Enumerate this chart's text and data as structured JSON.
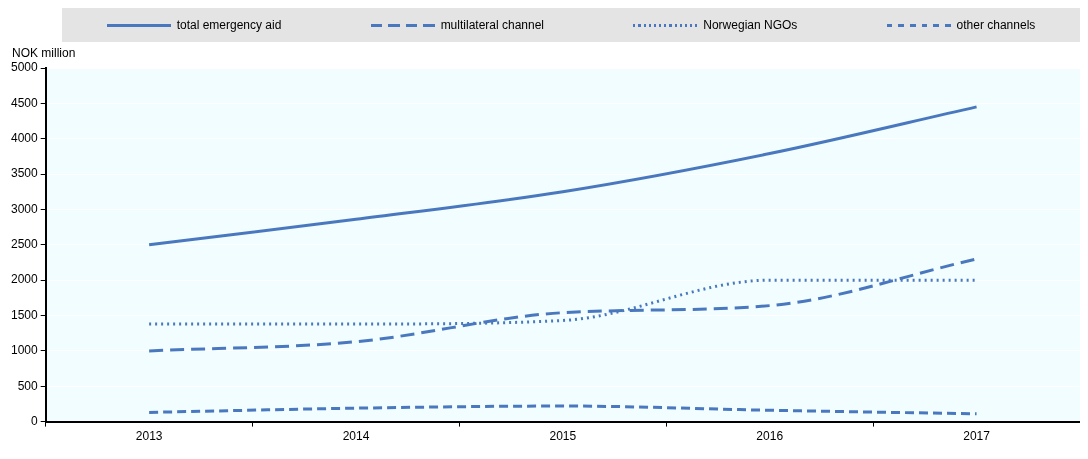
{
  "chart_data": {
    "type": "line",
    "ylabel": "NOK million",
    "categories": [
      "2013",
      "2014",
      "2015",
      "2016",
      "2017"
    ],
    "series": [
      {
        "name": "total emergency aid",
        "color": "#4a78be",
        "line_style": "solid",
        "values": [
          2500,
          2860,
          3250,
          3790,
          4450
        ]
      },
      {
        "name": "multilateral channel",
        "color": "#4a78be",
        "line_style": "dashed",
        "values": [
          1000,
          1130,
          1540,
          1640,
          2300
        ]
      },
      {
        "name": "Norwegian NGOs",
        "color": "#4a78be",
        "line_style": "dotted",
        "values": [
          1380,
          1380,
          1430,
          2000,
          2000
        ]
      },
      {
        "name": "other channels",
        "color": "#4a78be",
        "line_style": "dashed",
        "values": [
          130,
          190,
          220,
          160,
          110
        ]
      }
    ],
    "ylim": [
      0,
      5000
    ],
    "yticks": [
      0,
      500,
      1000,
      1500,
      2000,
      2500,
      3000,
      3500,
      4000,
      4500,
      5000
    ],
    "grid": "y",
    "legend": "top",
    "marker": "none"
  }
}
